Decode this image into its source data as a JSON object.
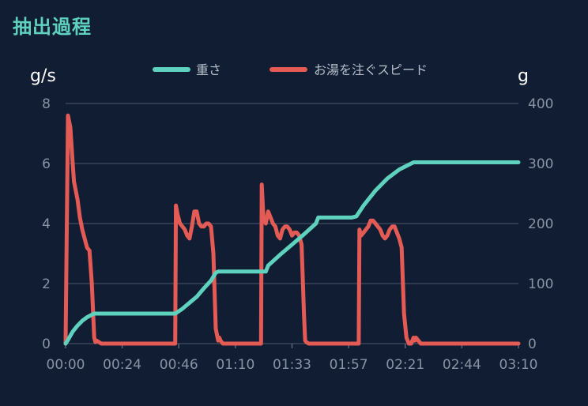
{
  "page": {
    "title": "抽出過程"
  },
  "chart_data": {
    "type": "line",
    "title": "",
    "left_axis": {
      "unit": "g/s",
      "range": [
        0,
        8
      ],
      "ticks": [
        "0",
        "2",
        "4",
        "6",
        "8"
      ]
    },
    "right_axis": {
      "unit": "g",
      "range": [
        0,
        400
      ],
      "ticks": [
        "0",
        "100",
        "200",
        "300",
        "400"
      ]
    },
    "x_axis": {
      "range_seconds": [
        0,
        190
      ],
      "ticks": [
        "00:00",
        "00:24",
        "00:46",
        "01:10",
        "01:33",
        "01:57",
        "02:21",
        "02:44",
        "03:10"
      ]
    },
    "grid": true,
    "legend": {
      "placement": "top-center"
    },
    "series": [
      {
        "name": "重さ",
        "axis": "right",
        "color": "#5fd1bf",
        "x": [
          0,
          1,
          3,
          5,
          7,
          9,
          11,
          12,
          20,
          30,
          40,
          46,
          49,
          52,
          55,
          58,
          61,
          63,
          64,
          70,
          80,
          84,
          85,
          90,
          95,
          100,
          105,
          106,
          120,
          122,
          125,
          130,
          135,
          140,
          145,
          146,
          152,
          160,
          175,
          190
        ],
        "y": [
          0,
          6,
          20,
          30,
          38,
          44,
          48,
          50,
          50,
          50,
          50,
          50,
          58,
          68,
          78,
          92,
          105,
          118,
          120,
          120,
          120,
          120,
          130,
          148,
          165,
          182,
          200,
          210,
          210,
          212,
          230,
          255,
          275,
          290,
          300,
          302,
          302,
          302,
          302,
          302
        ]
      },
      {
        "name": "お湯を注ぐスピード",
        "axis": "left",
        "color": "#e45b55",
        "x": [
          0,
          1,
          1.5,
          2,
          2.5,
          3,
          3.5,
          4,
          5,
          6,
          7,
          8,
          9,
          10,
          11,
          12,
          12.5,
          13,
          14,
          15,
          46,
          46.3,
          47,
          48,
          49,
          50,
          51,
          52,
          53,
          54,
          55,
          56,
          57,
          58,
          59,
          60,
          61,
          62,
          63,
          64,
          64.5,
          65,
          66,
          82,
          82.3,
          83,
          84,
          85,
          86,
          87,
          88,
          89,
          90,
          91,
          92,
          93,
          94,
          95,
          96,
          97,
          98,
          99,
          100,
          100.5,
          101,
          102,
          123,
          123.3,
          124,
          125,
          126,
          127,
          128,
          129,
          130,
          131,
          132,
          133,
          134,
          135,
          136,
          137,
          138,
          139,
          140,
          141,
          142,
          143,
          144,
          145,
          146,
          146.5,
          147,
          149,
          150,
          151,
          152,
          153,
          190
        ],
        "y": [
          0,
          7.6,
          7.4,
          7.2,
          6.6,
          6.0,
          5.4,
          5.2,
          4.8,
          4.2,
          3.8,
          3.5,
          3.2,
          3.1,
          2.0,
          0.2,
          0.05,
          0.1,
          0.05,
          0,
          0,
          4.6,
          4.3,
          4.0,
          3.9,
          3.8,
          3.6,
          3.5,
          3.9,
          4.4,
          4.4,
          4.0,
          3.9,
          3.9,
          4.0,
          4.0,
          3.9,
          3.0,
          0.5,
          0.1,
          0.2,
          0.1,
          0,
          0,
          5.3,
          4.2,
          4.0,
          4.4,
          4.2,
          4.0,
          3.9,
          3.6,
          3.5,
          3.8,
          3.9,
          3.9,
          3.8,
          3.6,
          3.7,
          3.7,
          3.6,
          3.3,
          1.0,
          0.1,
          0.05,
          0,
          0,
          3.8,
          3.6,
          3.7,
          3.8,
          3.9,
          4.1,
          4.1,
          4.0,
          3.9,
          3.8,
          3.6,
          3.5,
          3.6,
          3.8,
          3.9,
          3.9,
          3.7,
          3.5,
          3.2,
          1.0,
          0.2,
          0,
          0,
          0.2,
          0.1,
          0.2,
          0,
          0,
          0,
          0,
          0,
          0
        ]
      }
    ]
  }
}
